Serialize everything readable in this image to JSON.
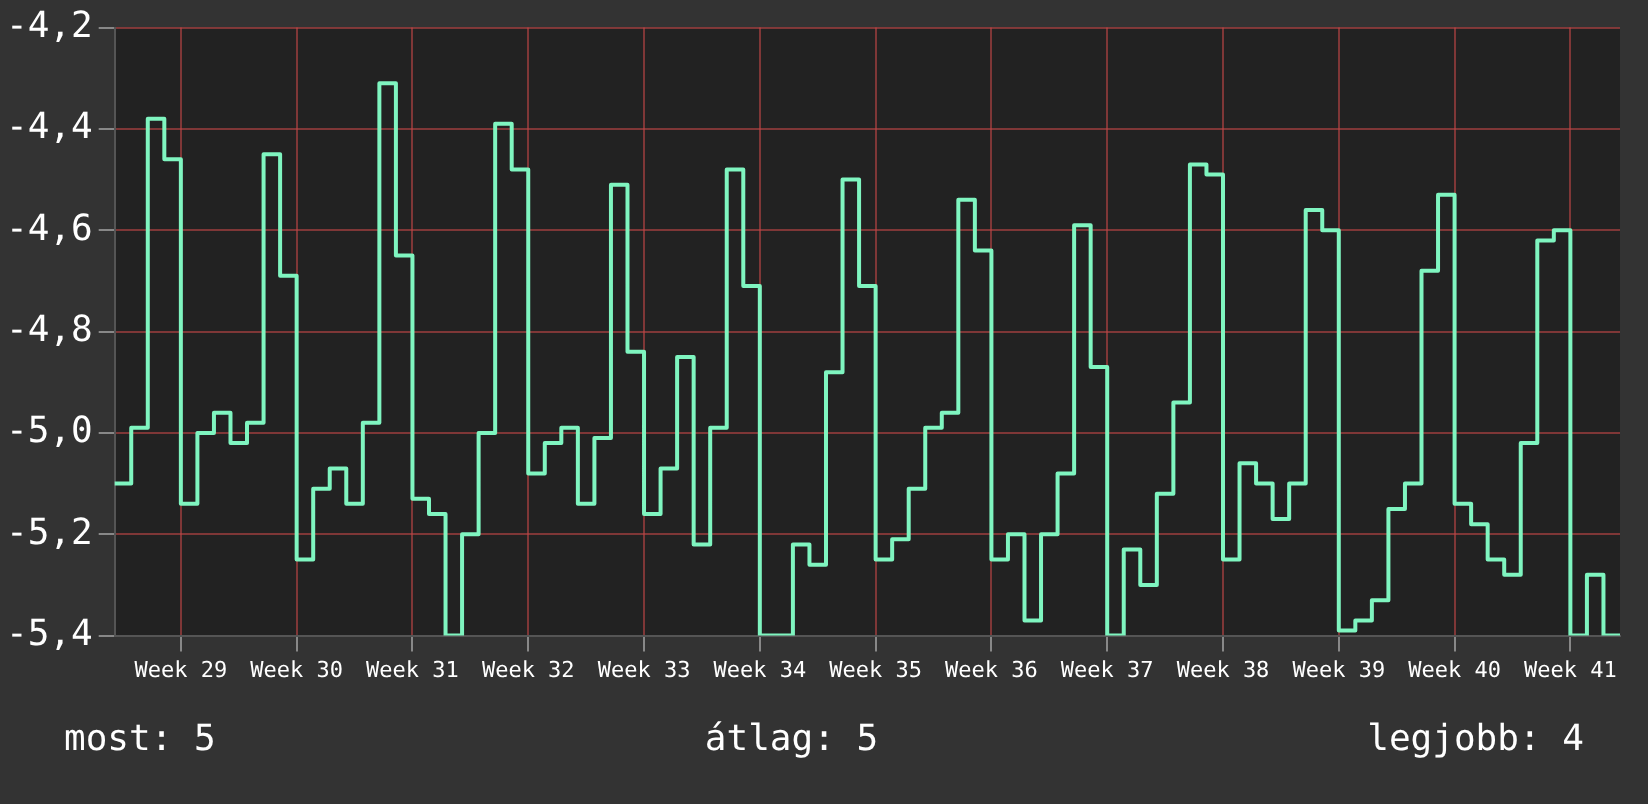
{
  "chart_data": {
    "type": "step",
    "categories": [
      null,
      null,
      null,
      null,
      "Week 29",
      null,
      null,
      null,
      null,
      null,
      null,
      "Week 30",
      null,
      null,
      null,
      null,
      null,
      null,
      "Week 31",
      null,
      null,
      null,
      null,
      null,
      null,
      "Week 32",
      null,
      null,
      null,
      null,
      null,
      null,
      "Week 33",
      null,
      null,
      null,
      null,
      null,
      null,
      "Week 34",
      null,
      null,
      null,
      null,
      null,
      null,
      "Week 35",
      null,
      null,
      null,
      null,
      null,
      null,
      "Week 36",
      null,
      null,
      null,
      null,
      null,
      null,
      "Week 37",
      null,
      null,
      null,
      null,
      null,
      null,
      "Week 38",
      null,
      null,
      null,
      null,
      null,
      null,
      "Week 39",
      null,
      null,
      null,
      null,
      null,
      null,
      "Week 40",
      null,
      null,
      null,
      null,
      null,
      null,
      "Week 41",
      null,
      null,
      null
    ],
    "series": [
      {
        "color": "#7ff5c0",
        "values": [
          -5.1,
          -4.99,
          -4.38,
          -4.46,
          -5.14,
          -5.0,
          -4.96,
          -5.02,
          -4.98,
          -4.45,
          -4.69,
          -5.25,
          -5.11,
          -5.07,
          -5.14,
          -4.98,
          -4.31,
          -4.65,
          -5.13,
          -5.16,
          -5.4,
          -5.2,
          -5.0,
          -4.39,
          -4.48,
          -5.08,
          -5.02,
          -4.99,
          -5.14,
          -5.01,
          -4.51,
          -4.84,
          -5.16,
          -5.07,
          -4.85,
          -5.22,
          -4.99,
          -4.48,
          -4.71,
          -5.4,
          -5.4,
          -5.22,
          -5.26,
          -4.88,
          -4.5,
          -4.71,
          -5.25,
          -5.21,
          -5.11,
          -4.99,
          -4.96,
          -4.54,
          -4.64,
          -5.25,
          -5.2,
          -5.37,
          -5.2,
          -5.08,
          -4.59,
          -4.87,
          -5.4,
          -5.23,
          -5.3,
          -5.12,
          -4.94,
          -4.47,
          -4.49,
          -5.25,
          -5.06,
          -5.1,
          -5.17,
          -5.1,
          -4.56,
          -4.6,
          -5.39,
          -5.37,
          -5.33,
          -5.15,
          -5.1,
          -4.68,
          -4.53,
          -5.14,
          -5.18,
          -5.25,
          -5.28,
          -5.02,
          -4.62,
          -4.6,
          -5.4,
          -5.28,
          -5.4,
          -5.4
        ]
      }
    ],
    "ylim": [
      -5.4,
      -4.2
    ],
    "yticks": [
      {
        "value": -5.4,
        "label": "-5,4"
      },
      {
        "value": -5.2,
        "label": "-5,2"
      },
      {
        "value": -5.0,
        "label": "-5,0"
      },
      {
        "value": -4.8,
        "label": "-4,8"
      },
      {
        "value": -4.6,
        "label": "-4,6"
      },
      {
        "value": -4.4,
        "label": "-4,4"
      },
      {
        "value": -4.2,
        "label": "-4,2"
      }
    ],
    "grid": true,
    "annotations": [
      "most: 5",
      "átlag: 5",
      "legjobb: 4"
    ]
  }
}
